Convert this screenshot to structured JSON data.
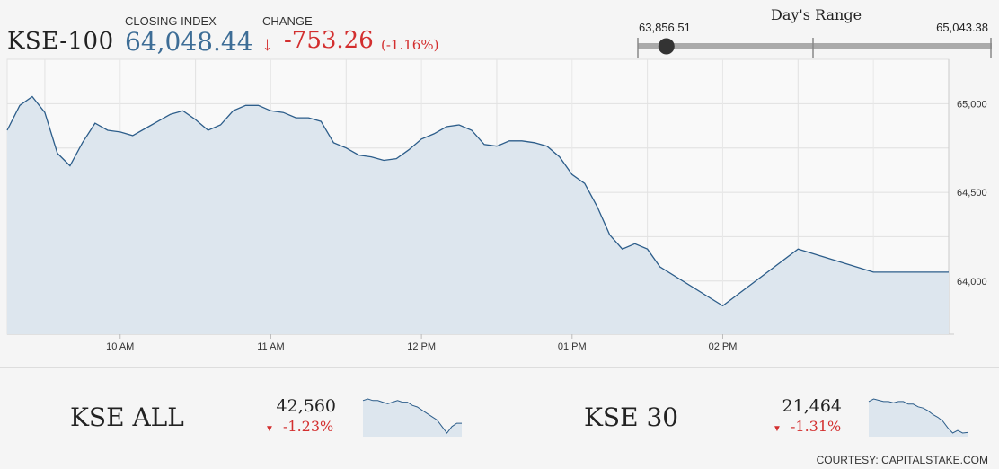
{
  "header": {
    "ticker": "KSE-100",
    "closing_label": "CLOSING INDEX",
    "closing_value": "64,048.44",
    "change_label": "CHANGE",
    "change_arrow": "↓",
    "change_value": "-753.26",
    "change_pct": "(-1.16%)"
  },
  "range": {
    "title": "Day's Range",
    "low": "63,856.51",
    "high": "65,043.38",
    "low_value": 63856.51,
    "high_value": 65043.38,
    "current_value": 64048.44
  },
  "colors": {
    "line": "#2c5d8a",
    "fill": "#dde6ee",
    "down": "#d32f2f",
    "value_blue": "#3d6d96"
  },
  "chart_data": [
    {
      "type": "area",
      "title": "",
      "x_ticks": [
        "10 AM",
        "11 AM",
        "12 PM",
        "01 PM",
        "02 PM"
      ],
      "y_ticks": [
        "64,000",
        "64,500",
        "65,000"
      ],
      "ylim": [
        63700,
        65250
      ],
      "xlim": [
        "09:15",
        "15:30"
      ],
      "grid": true,
      "x": [
        "09:15",
        "09:20",
        "09:25",
        "09:30",
        "09:35",
        "09:40",
        "09:45",
        "09:50",
        "09:55",
        "10:00",
        "10:05",
        "10:10",
        "10:15",
        "10:20",
        "10:25",
        "10:30",
        "10:35",
        "10:40",
        "10:45",
        "10:50",
        "10:55",
        "11:00",
        "11:05",
        "11:10",
        "11:15",
        "11:20",
        "11:25",
        "11:30",
        "11:35",
        "11:40",
        "11:45",
        "11:50",
        "11:55",
        "12:00",
        "12:05",
        "12:10",
        "12:15",
        "12:20",
        "12:25",
        "12:30",
        "12:35",
        "12:40",
        "12:45",
        "12:50",
        "12:55",
        "13:00",
        "13:05",
        "13:10",
        "13:15",
        "13:20",
        "13:25",
        "13:30",
        "13:35",
        "14:00",
        "14:30",
        "15:00",
        "15:30"
      ],
      "values": [
        64850,
        64990,
        65040,
        64950,
        64720,
        64650,
        64780,
        64890,
        64850,
        64840,
        64820,
        64860,
        64900,
        64940,
        64960,
        64910,
        64850,
        64880,
        64960,
        64990,
        64990,
        64960,
        64950,
        64920,
        64920,
        64900,
        64780,
        64750,
        64710,
        64700,
        64680,
        64690,
        64740,
        64800,
        64830,
        64870,
        64880,
        64850,
        64770,
        64760,
        64790,
        64790,
        64780,
        64760,
        64700,
        64600,
        64550,
        64420,
        64260,
        64180,
        64210,
        64180,
        64080,
        63860,
        64180,
        64050,
        64050
      ]
    },
    {
      "type": "area",
      "title": "KSE ALL",
      "values": [
        42700,
        42710,
        42700,
        42700,
        42690,
        42680,
        42690,
        42700,
        42690,
        42690,
        42670,
        42660,
        42640,
        42620,
        42600,
        42580,
        42540,
        42500,
        42540,
        42560,
        42560
      ]
    },
    {
      "type": "area",
      "title": "KSE 30",
      "values": [
        21700,
        21720,
        21710,
        21700,
        21700,
        21690,
        21700,
        21700,
        21680,
        21680,
        21660,
        21650,
        21630,
        21600,
        21580,
        21550,
        21500,
        21460,
        21480,
        21460,
        21464
      ]
    }
  ],
  "indices": [
    {
      "name": "KSE ALL",
      "value": "42,560",
      "pct": "-1.23%"
    },
    {
      "name": "KSE 30",
      "value": "21,464",
      "pct": "-1.31%"
    }
  ],
  "footer": {
    "courtesy": "COURTESY: CAPITALSTAKE.COM"
  }
}
